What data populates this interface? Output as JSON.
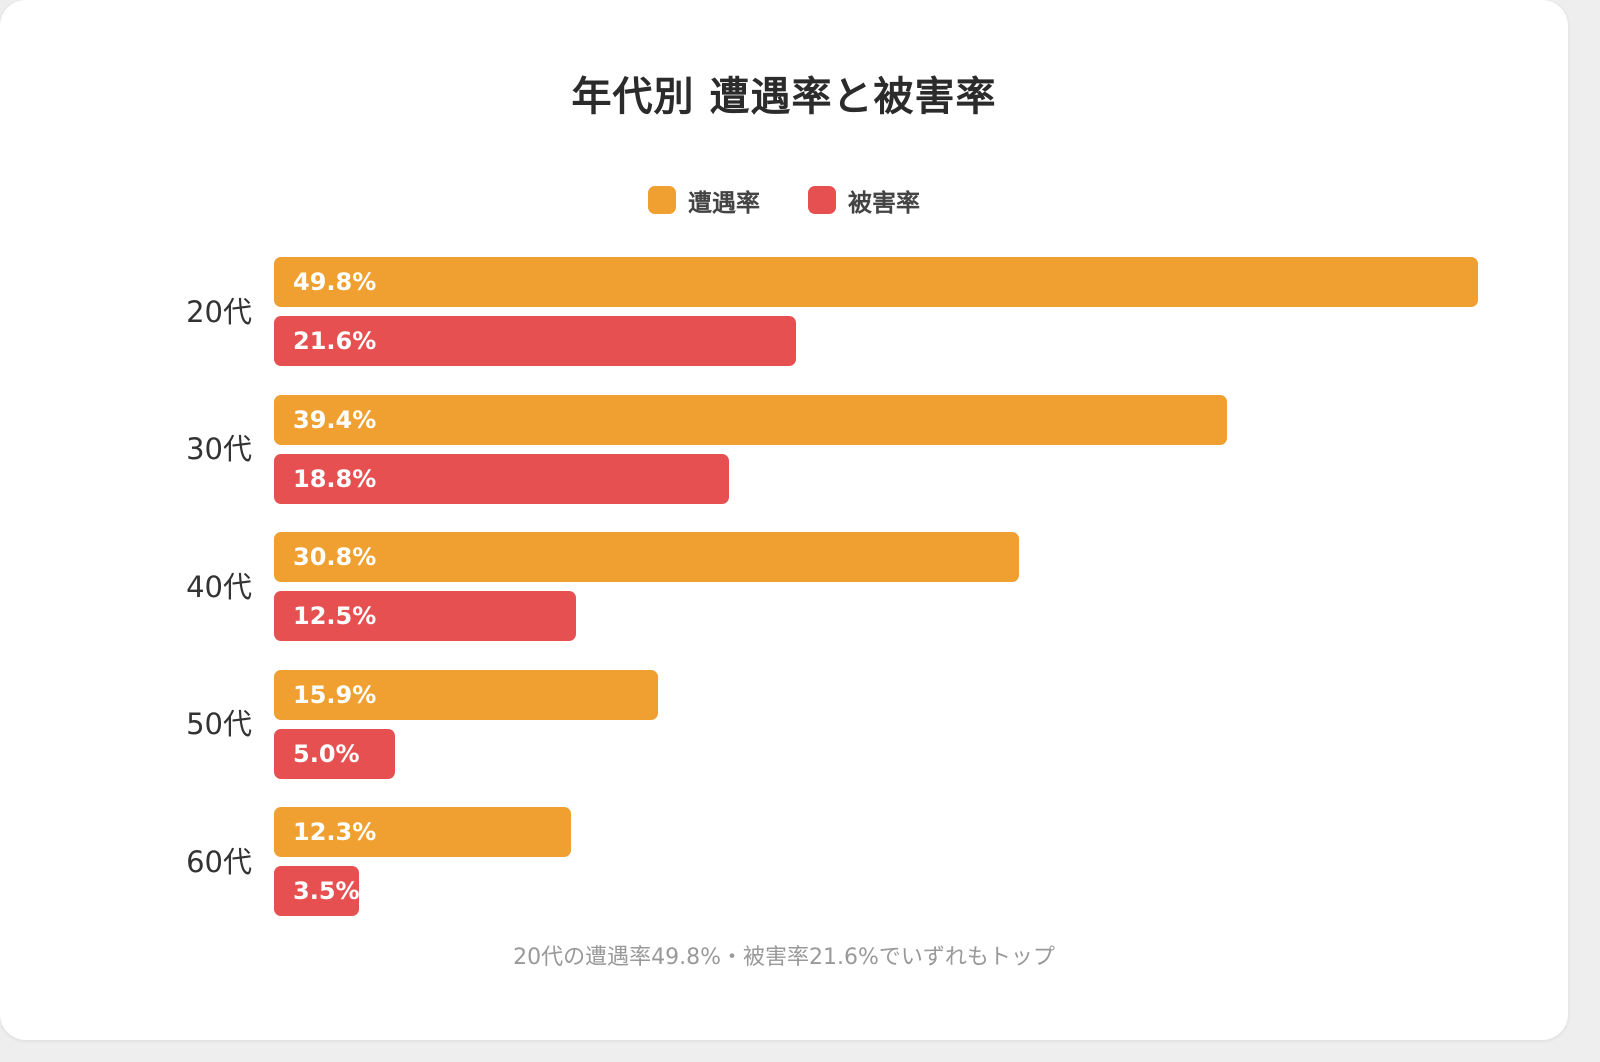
{
  "title": "年代別 遭遇率と被害率",
  "note": "20代の遭遇率49.8%・被害率21.6%でいずれもトップ",
  "chart_data": {
    "type": "bar",
    "orientation": "horizontal",
    "title": "年代別 遭遇率と被害率",
    "categories": [
      "20代",
      "30代",
      "40代",
      "50代",
      "60代"
    ],
    "series": [
      {
        "name": "遭遇率",
        "color": "#EFA030",
        "values": [
          49.8,
          39.4,
          30.8,
          15.9,
          12.3
        ],
        "labels": [
          "49.8%",
          "39.4%",
          "30.8%",
          "15.9%",
          "12.3%"
        ]
      },
      {
        "name": "被害率",
        "color": "#E65050",
        "values": [
          21.6,
          18.8,
          12.5,
          5.0,
          3.5
        ],
        "labels": [
          "21.6%",
          "18.8%",
          "12.5%",
          "5.0%",
          "3.5%"
        ]
      }
    ],
    "unit": "%",
    "legend": "top-center",
    "grid": false,
    "value_axis_visible": false,
    "xlim": [
      0,
      49.8
    ]
  }
}
